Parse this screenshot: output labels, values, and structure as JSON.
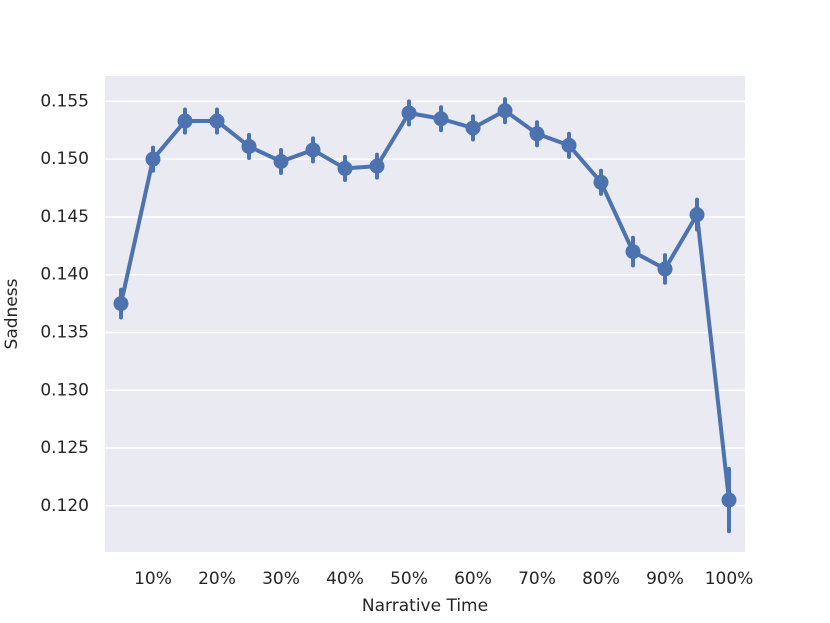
{
  "chart_data": {
    "type": "pointplot",
    "x_label": "Narrative Time",
    "y_label": "Sadness",
    "categories": [
      null,
      "10%",
      null,
      "20%",
      null,
      "30%",
      null,
      "40%",
      null,
      "50%",
      null,
      "60%",
      null,
      "70%",
      null,
      "80%",
      null,
      "90%",
      null,
      "100%"
    ],
    "values": [
      0.1375,
      0.15,
      0.1533,
      0.1533,
      0.1511,
      0.1498,
      0.1508,
      0.1492,
      0.1494,
      0.154,
      0.1535,
      0.1527,
      0.1542,
      0.1522,
      0.1512,
      0.148,
      0.142,
      0.1405,
      0.1452,
      0.1205
    ],
    "errors": [
      0.0012,
      0.001,
      0.001,
      0.001,
      0.001,
      0.001,
      0.001,
      0.001,
      0.001,
      0.001,
      0.001,
      0.001,
      0.001,
      0.001,
      0.001,
      0.001,
      0.0012,
      0.0012,
      0.0013,
      0.0027
    ],
    "color": "#4c72b0",
    "ylim": [
      0.116,
      0.1572
    ],
    "yticks": [
      {
        "value": 0.12,
        "label": "0.120"
      },
      0.125,
      {
        "value": 0.13,
        "label": "0.130"
      },
      0.135,
      {
        "value": 0.14,
        "label": "0.140"
      },
      0.145,
      {
        "value": 0.15,
        "label": "0.150"
      },
      0.155
    ],
    "grid": true
  }
}
